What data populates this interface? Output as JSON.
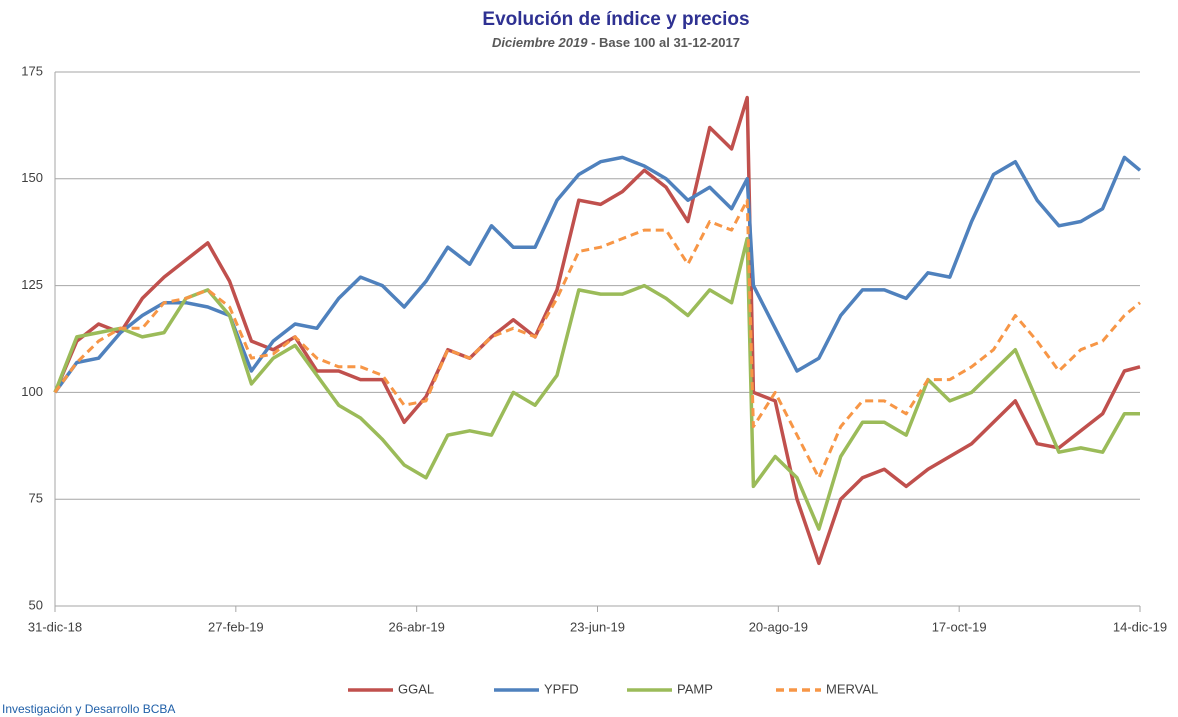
{
  "chart_data": {
    "type": "line",
    "title": "Evolución de índice y precios",
    "subtitle": [
      "Diciembre 2019",
      "- Base 100 al 31-12-2017"
    ],
    "footer": "Investigación y Desarrollo BCBA",
    "x": [
      "2018-12-31",
      "2019-01-07",
      "2019-01-14",
      "2019-01-21",
      "2019-01-28",
      "2019-02-04",
      "2019-02-11",
      "2019-02-18",
      "2019-02-25",
      "2019-03-04",
      "2019-03-11",
      "2019-03-18",
      "2019-03-25",
      "2019-04-01",
      "2019-04-08",
      "2019-04-15",
      "2019-04-22",
      "2019-04-29",
      "2019-05-06",
      "2019-05-13",
      "2019-05-20",
      "2019-05-27",
      "2019-06-03",
      "2019-06-10",
      "2019-06-17",
      "2019-06-24",
      "2019-07-01",
      "2019-07-08",
      "2019-07-15",
      "2019-07-22",
      "2019-07-29",
      "2019-08-05",
      "2019-08-10",
      "2019-08-12",
      "2019-08-19",
      "2019-08-26",
      "2019-09-02",
      "2019-09-09",
      "2019-09-16",
      "2019-09-23",
      "2019-09-30",
      "2019-10-07",
      "2019-10-14",
      "2019-10-21",
      "2019-10-28",
      "2019-11-04",
      "2019-11-11",
      "2019-11-18",
      "2019-11-25",
      "2019-12-02",
      "2019-12-09",
      "2019-12-14"
    ],
    "series": [
      {
        "name": "GGAL",
        "color": "#c0504d",
        "dashed": false,
        "values": [
          100,
          112,
          116,
          114,
          122,
          127,
          131,
          135,
          126,
          112,
          110,
          113,
          105,
          105,
          103,
          103,
          93,
          99,
          110,
          108,
          113,
          117,
          113,
          124,
          145,
          144,
          147,
          152,
          148,
          140,
          162,
          157,
          169,
          100,
          98,
          75,
          60,
          75,
          80,
          82,
          78,
          82,
          85,
          88,
          93,
          98,
          88,
          87,
          91,
          95,
          105,
          106
        ]
      },
      {
        "name": "YPFD",
        "color": "#4f81bd",
        "dashed": false,
        "values": [
          100,
          107,
          108,
          114,
          118,
          121,
          121,
          120,
          118,
          105,
          112,
          116,
          115,
          122,
          127,
          125,
          120,
          126,
          134,
          130,
          139,
          134,
          134,
          145,
          151,
          154,
          155,
          153,
          150,
          145,
          148,
          143,
          150,
          125,
          115,
          105,
          108,
          118,
          124,
          124,
          122,
          128,
          127,
          140,
          151,
          154,
          145,
          139,
          140,
          143,
          155,
          152
        ]
      },
      {
        "name": "PAMP",
        "color": "#9bbb59",
        "dashed": false,
        "values": [
          100,
          113,
          114,
          115,
          113,
          114,
          122,
          124,
          118,
          102,
          108,
          111,
          104,
          97,
          94,
          89,
          83,
          80,
          90,
          91,
          90,
          100,
          97,
          104,
          124,
          123,
          123,
          125,
          122,
          118,
          124,
          121,
          136,
          78,
          85,
          80,
          68,
          85,
          93,
          93,
          90,
          103,
          98,
          100,
          105,
          110,
          98,
          86,
          87,
          86,
          95,
          95
        ]
      },
      {
        "name": "MERVAL",
        "color": "#f79646",
        "dashed": true,
        "values": [
          100,
          107,
          112,
          115,
          115,
          121,
          122,
          124,
          120,
          108,
          109,
          113,
          108,
          106,
          106,
          104,
          97,
          98,
          110,
          108,
          113,
          115,
          113,
          122,
          133,
          134,
          136,
          138,
          138,
          130,
          140,
          138,
          145,
          92,
          100,
          90,
          80,
          92,
          98,
          98,
          95,
          103,
          103,
          106,
          110,
          118,
          112,
          105,
          110,
          112,
          118,
          121
        ]
      }
    ],
    "xlim": [
      "2018-12-31",
      "2019-12-14"
    ],
    "xticks": [
      {
        "value": "2018-12-31",
        "label": "31-dic-18"
      },
      {
        "value": "2019-02-27",
        "label": "27-feb-19"
      },
      {
        "value": "2019-04-26",
        "label": "26-abr-19"
      },
      {
        "value": "2019-06-23",
        "label": "23-jun-19"
      },
      {
        "value": "2019-08-20",
        "label": "20-ago-19"
      },
      {
        "value": "2019-10-17",
        "label": "17-oct-19"
      },
      {
        "value": "2019-12-14",
        "label": "14-dic-19"
      }
    ],
    "ylim": [
      50,
      175
    ],
    "yticks": [
      50,
      75,
      100,
      125,
      150,
      175
    ],
    "grid": true,
    "legend": "bottom"
  }
}
